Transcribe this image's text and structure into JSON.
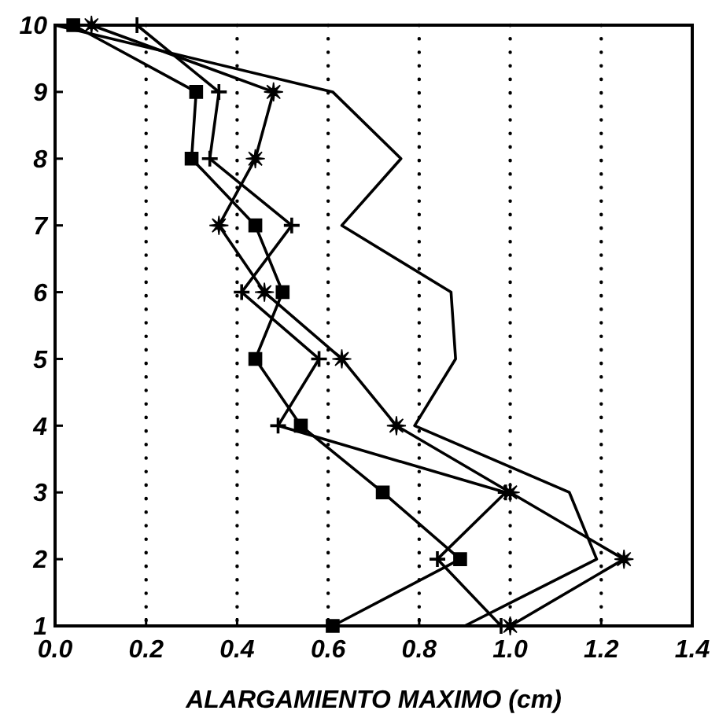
{
  "chart_data": {
    "type": "line",
    "orientation": "horizontal",
    "xlabel": "ALARGAMIENTO MAXIMO (cm)",
    "categories": [
      "10",
      "9",
      "8",
      "7",
      "6",
      "5",
      "4",
      "3",
      "2",
      "1"
    ],
    "xlim": [
      0,
      1.4
    ],
    "xticks": [
      {
        "value": 0,
        "label": "0.0"
      },
      {
        "value": 0.2,
        "label": "0.2"
      },
      {
        "value": 0.4,
        "label": "0.4"
      },
      {
        "value": 0.6,
        "label": "0.6"
      },
      {
        "value": 0.8,
        "label": "0.8"
      },
      {
        "value": 1,
        "label": "1.0"
      },
      {
        "value": 1.2,
        "label": "1.2"
      },
      {
        "value": 1.4,
        "label": "1.4"
      }
    ],
    "grid": "x",
    "series": [
      {
        "color": "#000000",
        "marker": "square",
        "values": [
          0.04,
          0.31,
          0.3,
          0.44,
          0.5,
          0.44,
          0.54,
          0.72,
          0.89,
          0.61
        ]
      },
      {
        "color": "#000000",
        "marker": "star",
        "values": [
          0.08,
          0.48,
          0.44,
          0.36,
          0.46,
          0.63,
          0.75,
          1.0,
          1.25,
          1.0
        ]
      },
      {
        "color": "#000000",
        "marker": "cross",
        "values": [
          0.18,
          0.36,
          0.34,
          0.52,
          0.41,
          0.58,
          0.49,
          0.99,
          0.84,
          0.98
        ]
      },
      {
        "color": "#000000",
        "marker": "none",
        "values": [
          0.0,
          0.61,
          0.76,
          0.63,
          0.87,
          0.88,
          0.79,
          1.13,
          1.19,
          0.9
        ]
      }
    ]
  }
}
